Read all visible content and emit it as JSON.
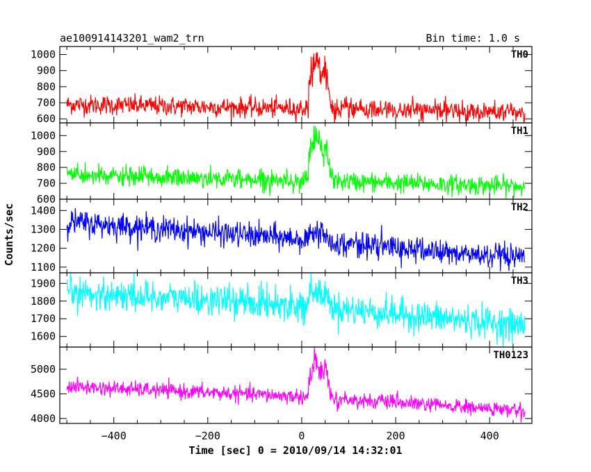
{
  "header": {
    "title": "ae100914143201_wam2_trn",
    "bin_time": "Bin time: 1.0 s"
  },
  "chart_data": {
    "type": "line",
    "xlabel": "Time [sec] 0 = 2010/09/14 14:32:01",
    "ylabel": "Counts/sec",
    "xlim": [
      -515,
      490
    ],
    "x_ticks": [
      -400,
      -200,
      0,
      200,
      400
    ],
    "x_range": [
      -500,
      475
    ],
    "burst": {
      "onset": 15,
      "peak": 30,
      "decay_end": 65
    },
    "panels": [
      {
        "name": "TH0",
        "color": "#ff0000",
        "ylim": [
          575,
          1050
        ],
        "y_ticks": [
          600,
          700,
          800,
          900,
          1000
        ],
        "baseline": [
          690,
          665,
          640
        ],
        "noise": 38,
        "peak": 1040
      },
      {
        "name": "TH1",
        "color": "#00ff00",
        "ylim": [
          600,
          1080
        ],
        "y_ticks": [
          600,
          700,
          800,
          900,
          1000
        ],
        "baseline": [
          750,
          720,
          680
        ],
        "noise": 38,
        "peak": 1060
      },
      {
        "name": "TH2",
        "color": "#0000ff",
        "ylim": [
          1070,
          1460
        ],
        "y_ticks": [
          1100,
          1200,
          1300,
          1400
        ],
        "baseline": [
          1340,
          1250,
          1140
        ],
        "noise": 42,
        "peak": 1330
      },
      {
        "name": "TH3",
        "color": "#00ffff",
        "ylim": [
          1540,
          1960
        ],
        "y_ticks": [
          1600,
          1700,
          1800,
          1900
        ],
        "baseline": [
          1850,
          1780,
          1660
        ],
        "noise": 55,
        "peak": 1880
      },
      {
        "name": "TH0123",
        "color": "#ff00ff",
        "ylim": [
          3900,
          5450
        ],
        "y_ticks": [
          4000,
          4500,
          5000
        ],
        "baseline": [
          4650,
          4450,
          4150
        ],
        "noise": 95,
        "peak": 5400
      }
    ]
  }
}
